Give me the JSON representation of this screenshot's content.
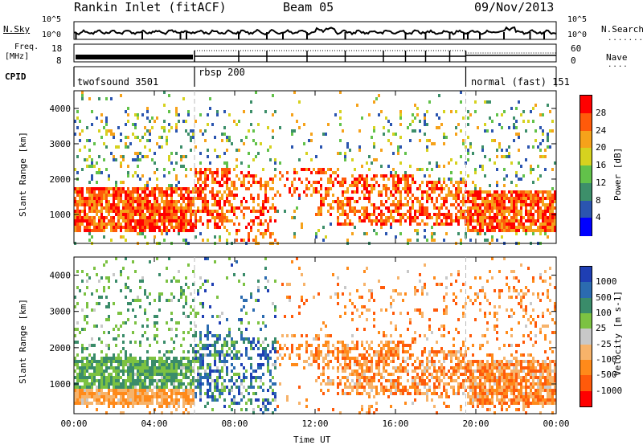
{
  "header": {
    "station": "Rankin Inlet (fitACF)",
    "beam": "Beam 05",
    "date": "09/Nov/2013"
  },
  "top_panels": {
    "nsky_label": "N.Sky",
    "nsearch_label": "N.Search",
    "nsky_ticks": [
      "10^5",
      "10^0"
    ],
    "nsearch_ticks": [
      "10^5",
      "10^0"
    ],
    "freq_label_line1": "Freq.",
    "freq_label_line2": "[MHz]",
    "freq_ticks": [
      "18",
      "8"
    ],
    "nave_label": "Nave",
    "nave_ticks": [
      "60",
      "0"
    ],
    "cpid_label": "CPID",
    "cpid_segments": [
      {
        "name": "twofsound",
        "id": "3501",
        "start_hour": 0,
        "end_hour": 6.0
      },
      {
        "name": "rbsp",
        "id": "200",
        "start_hour": 6.0,
        "end_hour": 19.5
      },
      {
        "name": "normal (fast)",
        "id": "151",
        "start_hour": 19.5,
        "end_hour": 24
      }
    ]
  },
  "chart_data": [
    {
      "type": "heatmap",
      "title": "",
      "quantity": "Power",
      "xlabel": "",
      "ylabel": "Slant Range [km]",
      "x_ticks": [
        "00:00",
        "04:00",
        "08:00",
        "12:00",
        "16:00",
        "20:00",
        "00:00"
      ],
      "y_ticks": [
        "1000",
        "2000",
        "3000",
        "4000"
      ],
      "xlim_hours": [
        0,
        24
      ],
      "ylim_km": [
        180,
        4500
      ],
      "colorbar_label": "Power [dB]",
      "colorbar_ticks": [
        "4",
        "8",
        "12",
        "16",
        "20",
        "24",
        "28"
      ],
      "colorbar_colors": [
        "#0000ff",
        "#2b55b0",
        "#3d8f6a",
        "#62c24a",
        "#d6d21f",
        "#f6a21a",
        "#ff5a0a",
        "#ff0000"
      ],
      "colorbar_range": [
        0,
        32
      ]
    },
    {
      "type": "heatmap",
      "title": "",
      "quantity": "Velocity",
      "xlabel": "Time UT",
      "ylabel": "Slant Range [km]",
      "x_ticks": [
        "00:00",
        "04:00",
        "08:00",
        "12:00",
        "16:00",
        "20:00",
        "00:00"
      ],
      "y_ticks": [
        "1000",
        "2000",
        "3000",
        "4000"
      ],
      "xlim_hours": [
        0,
        24
      ],
      "ylim_km": [
        180,
        4500
      ],
      "colorbar_label": "Velocity [m s-1]",
      "colorbar_ticks": [
        "1000",
        "500",
        "100",
        "25",
        "-25",
        "-100",
        "-500",
        "-1000"
      ],
      "colorbar_colors": [
        "#1f3fb4",
        "#2b6bb0",
        "#3a8c6a",
        "#7cc242",
        "#c8c8c8",
        "#f7b36a",
        "#ff8a1a",
        "#ff5a0a",
        "#ff0000"
      ]
    }
  ]
}
